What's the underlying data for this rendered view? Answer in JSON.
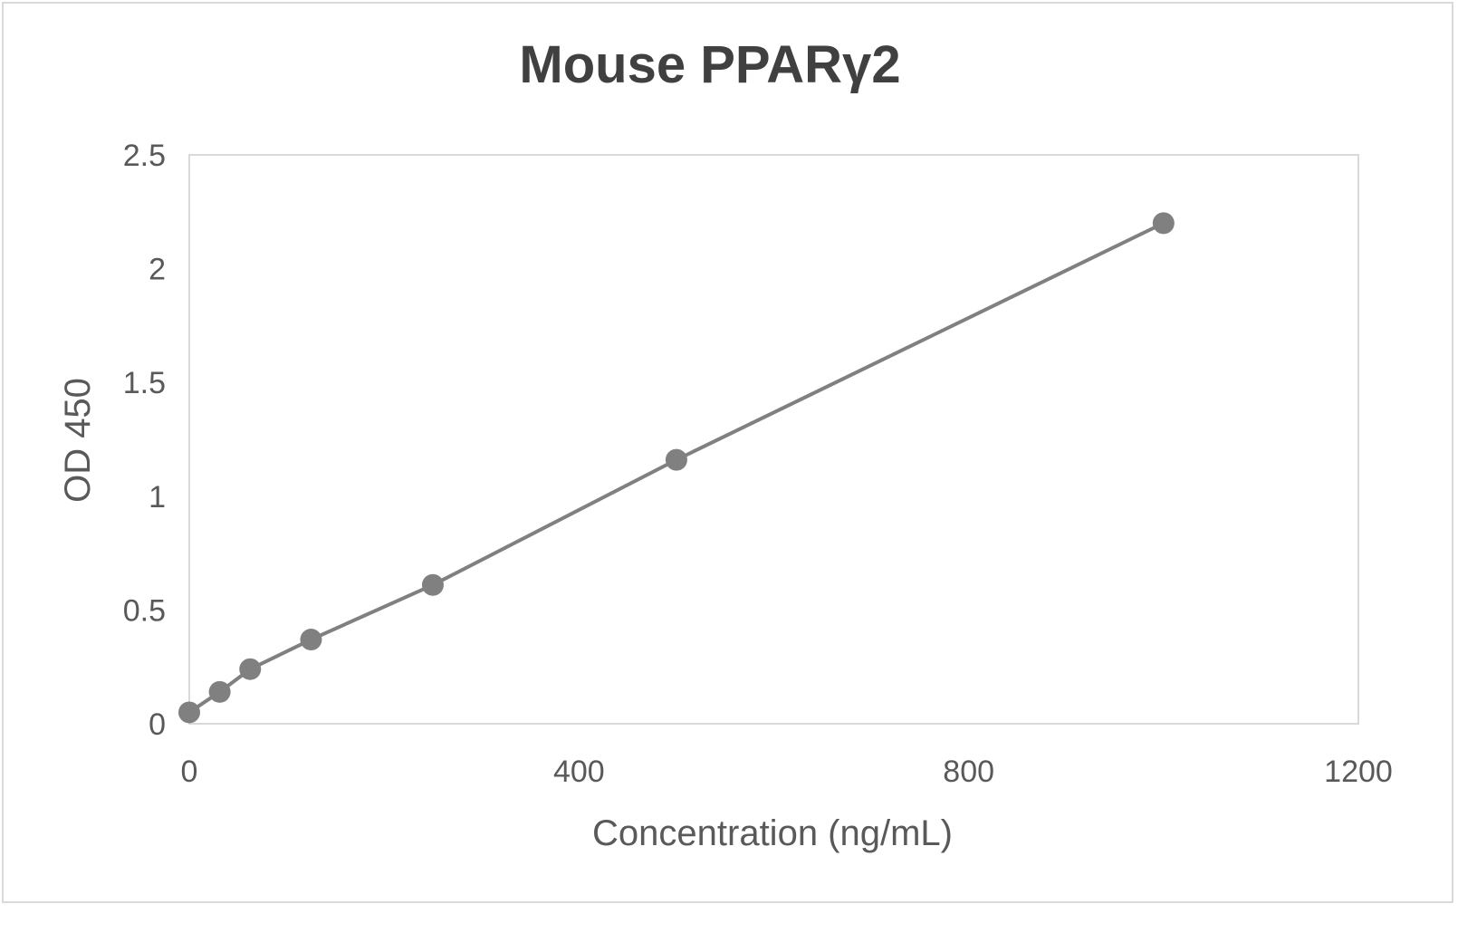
{
  "chart_data": {
    "type": "scatter",
    "title": "Mouse PPARγ2",
    "xlabel": "Concentration (ng/mL)",
    "ylabel": "OD 450",
    "xlim": [
      0,
      1200
    ],
    "ylim": [
      0,
      2.5
    ],
    "x_ticks": [
      "0",
      "400",
      "800",
      "1200"
    ],
    "y_ticks": [
      "0",
      "0.5",
      "1",
      "1.5",
      "2",
      "2.5"
    ],
    "grid": false,
    "legend": null,
    "series": [
      {
        "name": "Mouse PPARγ2",
        "x": [
          0,
          31.25,
          62.5,
          125,
          250,
          500,
          1000
        ],
        "values": [
          0.05,
          0.14,
          0.24,
          0.37,
          0.61,
          1.16,
          2.2
        ],
        "color": "#808080",
        "style": "line+markers"
      }
    ]
  }
}
